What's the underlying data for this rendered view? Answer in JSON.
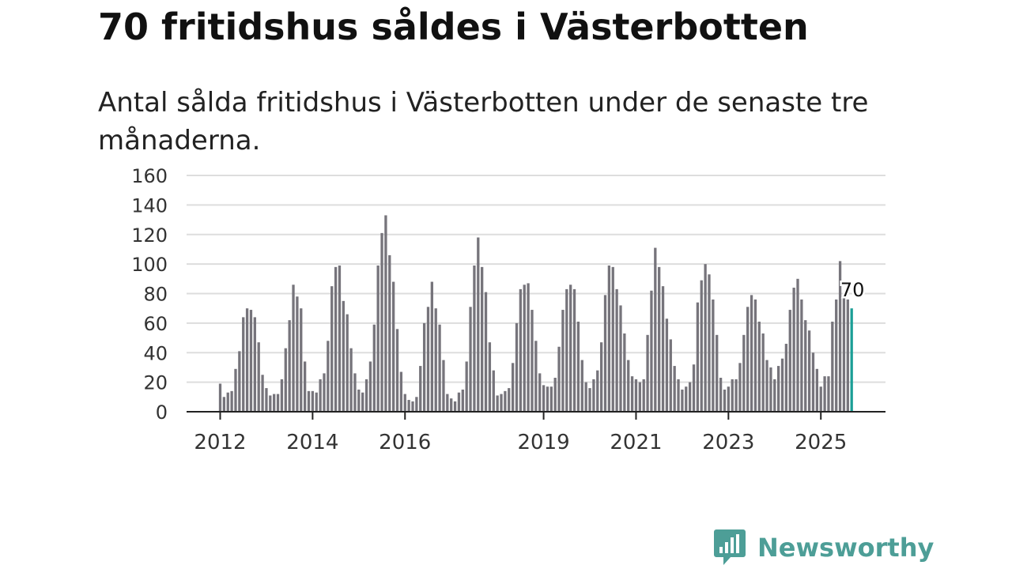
{
  "title": "70 fritidshus såldes i Västerbotten",
  "subtitle": "Antal sålda fritidshus i Västerbotten under de senaste tre månaderna.",
  "brand": {
    "name": "Newsworthy",
    "logo_icon": "newsworthy-chart-bubble-icon"
  },
  "colors": {
    "bar": "#76747b",
    "highlight": "#1b9e96",
    "grid": "#dddddd",
    "axis": "#222222"
  },
  "chart_data": {
    "type": "bar",
    "ylim": [
      0,
      160
    ],
    "yticks": [
      0,
      20,
      40,
      60,
      80,
      100,
      120,
      140,
      160
    ],
    "grid": true,
    "x_ticks": [
      "2012",
      "2014",
      "2016",
      "2019",
      "2021",
      "2023",
      "2025"
    ],
    "annotation": {
      "label": "70",
      "value": 70
    },
    "series": [
      {
        "values": [
          19,
          10,
          13,
          14,
          29,
          41,
          64,
          70,
          69,
          64,
          47,
          25,
          16,
          11,
          12,
          12,
          22,
          43,
          62,
          86,
          78,
          70,
          34,
          14,
          14,
          13,
          22,
          26,
          48,
          85,
          98,
          99,
          75,
          66,
          43,
          26,
          15,
          13,
          22,
          34,
          59,
          99,
          121,
          133,
          106,
          88,
          56,
          27,
          12,
          8,
          7,
          10,
          31,
          60,
          71,
          88,
          70,
          59,
          35,
          12,
          9,
          7,
          13,
          15,
          34,
          71,
          99,
          118,
          98,
          81,
          47,
          28,
          11,
          12,
          14,
          16,
          33,
          60,
          83,
          86,
          87,
          69,
          48,
          26,
          18,
          17,
          17,
          23,
          44,
          69,
          83,
          86,
          83,
          61,
          35,
          20,
          16,
          22,
          28,
          47,
          79,
          99,
          98,
          83,
          72,
          53,
          35,
          24,
          22,
          20,
          22,
          52,
          82,
          111,
          98,
          85,
          63,
          49,
          31,
          22,
          15,
          17,
          20,
          32,
          74,
          89,
          100,
          93,
          76,
          52,
          23,
          15,
          17,
          22,
          22,
          33,
          52,
          71,
          79,
          76,
          61,
          53,
          35,
          30,
          22,
          31,
          36,
          46,
          69,
          84,
          90,
          76,
          62,
          55,
          40,
          29,
          17,
          24,
          24,
          61,
          76,
          102,
          77,
          76,
          70
        ]
      }
    ]
  }
}
